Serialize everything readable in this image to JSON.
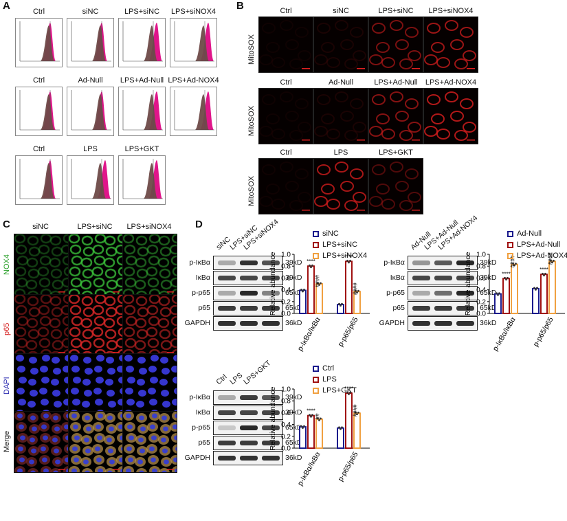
{
  "panel_labels": {
    "A": "A",
    "B": "B",
    "C": "C",
    "D": "D"
  },
  "panelA": {
    "rows": [
      [
        "Ctrl",
        "siNC",
        "LPS+siNC",
        "LPS+siNOX4"
      ],
      [
        "Ctrl",
        "Ad-Null",
        "LPS+Ad-Null",
        "LPS+Ad-NOX4"
      ],
      [
        "Ctrl",
        "LPS",
        "LPS+GKT"
      ]
    ],
    "pink_color": "#e0158a",
    "gray_color": "#6e4a48"
  },
  "panelB": {
    "rows": [
      [
        "Ctrl",
        "siNC",
        "LPS+siNC",
        "LPS+siNOX4"
      ],
      [
        "Ctrl",
        "Ad-Null",
        "LPS+Ad-Null",
        "LPS+Ad-NOX4"
      ],
      [
        "Ctrl",
        "LPS",
        "LPS+GKT"
      ]
    ],
    "ylabel": "MitoSOX",
    "intensity": [
      [
        0.05,
        0.1,
        0.55,
        0.7
      ],
      [
        0.05,
        0.1,
        0.6,
        0.8
      ],
      [
        0.05,
        0.75,
        0.35
      ]
    ]
  },
  "panelC": {
    "cols": [
      "siNC",
      "LPS+siNC",
      "LPS+siNOX4"
    ],
    "rows": [
      "NOX4",
      "p65",
      "DAPI",
      "Merge"
    ],
    "row_colors": [
      "#2aa02a",
      "#d62020",
      "#2a2ab0",
      "#111111"
    ]
  },
  "panelD": {
    "blots": [
      {
        "cols": [
          "siNC",
          "LPS+siNC",
          "LPS+siNOX4"
        ],
        "rows": [
          "p-IκBα",
          "IκBα",
          "p-p65",
          "p65",
          "GAPDH"
        ],
        "kd": [
          "39kD",
          "39kD",
          "65kD",
          "65kD",
          "36kD"
        ]
      },
      {
        "cols": [
          "Ad-Null",
          "LPS+Ad-Null",
          "LPS+Ad-NOX4"
        ],
        "rows": [
          "p-IκBα",
          "IκBα",
          "p-p65",
          "p65",
          "GAPDH"
        ],
        "kd": [
          "39kD",
          "39kD",
          "65kD",
          "65kD",
          "36kD"
        ]
      },
      {
        "cols": [
          "Ctrl",
          "LPS",
          "LPS+GKT"
        ],
        "rows": [
          "p-IκBα",
          "IκBα",
          "p-p65",
          "p65",
          "GAPDH"
        ],
        "kd": [
          "39kD",
          "39kD",
          "65kD",
          "65kD",
          "36kD"
        ]
      }
    ]
  },
  "chart_data": [
    {
      "type": "bar",
      "ylabel": "Relative abundance",
      "ylim": [
        0,
        1.0
      ],
      "yticks": [
        "0.0",
        "0.2",
        "0.4",
        "0.6",
        "0.8",
        "1.0"
      ],
      "categories": [
        "p-IκBα/IκBα",
        "p-p65/p65"
      ],
      "series": [
        {
          "name": "siNC",
          "values": [
            0.39,
            0.15
          ],
          "color": "#1a1a8c"
        },
        {
          "name": "LPS+siNC",
          "values": [
            0.8,
            0.88
          ],
          "color": "#a01010"
        },
        {
          "name": "LPS+siNOX4",
          "values": [
            0.5,
            0.37
          ],
          "color": "#f0a040"
        }
      ],
      "annotations": [
        [
          "",
          "****",
          "####"
        ],
        [
          "",
          "****",
          "####"
        ]
      ]
    },
    {
      "type": "bar",
      "ylabel": "Relative abundance",
      "ylim": [
        0,
        1.0
      ],
      "yticks": [
        "0.0",
        "0.2",
        "0.4",
        "0.6",
        "0.8",
        "1.0"
      ],
      "categories": [
        "p-IκBα/IκBα",
        "p-p65/p65"
      ],
      "series": [
        {
          "name": "Ad-Null",
          "values": [
            0.33,
            0.42
          ],
          "color": "#1a1a8c"
        },
        {
          "name": "LPS+Ad-Null",
          "values": [
            0.59,
            0.66
          ],
          "color": "#a01010"
        },
        {
          "name": "LPS+Ad-NOX4",
          "values": [
            0.83,
            0.88
          ],
          "color": "#f0a040"
        }
      ],
      "annotations": [
        [
          "",
          "****",
          "####"
        ],
        [
          "",
          "****",
          "####"
        ]
      ]
    },
    {
      "type": "bar",
      "ylabel": "Relative abundance",
      "ylim": [
        0,
        1.0
      ],
      "yticks": [
        "0.0",
        "0.2",
        "0.4",
        "0.6",
        "0.8",
        "1.0"
      ],
      "categories": [
        "p-IκBα/IκBα",
        "p-p65/p65"
      ],
      "series": [
        {
          "name": "Ctrl",
          "values": [
            0.36,
            0.34
          ],
          "color": "#1a1a8c"
        },
        {
          "name": "LPS",
          "values": [
            0.55,
            0.93
          ],
          "color": "#a01010"
        },
        {
          "name": "LPS+GKT",
          "values": [
            0.49,
            0.59
          ],
          "color": "#f0a040"
        }
      ],
      "annotations": [
        [
          "",
          "****",
          "##"
        ],
        [
          "",
          "****",
          "####"
        ]
      ]
    }
  ]
}
